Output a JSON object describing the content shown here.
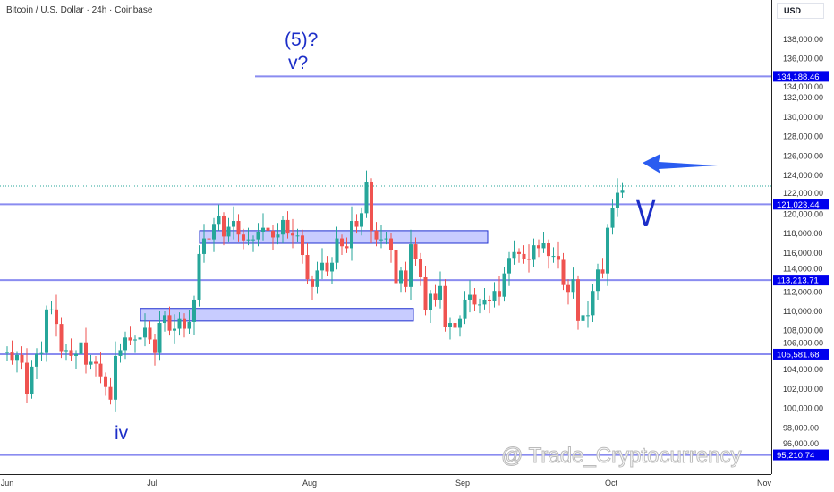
{
  "title": "Bitcoin / U.S. Dollar · 24h · Coinbase",
  "currency": "USD",
  "watermark": "@ Trade_Cryptocurrency",
  "annotations": {
    "wave5": "(5)?",
    "wave_v_small": "v?",
    "wave_iv": "iv",
    "wave_v": "V"
  },
  "colors": {
    "up": "#26a69a",
    "down": "#ef5350",
    "level": "#8a8cf0",
    "label": "#0000ee",
    "box": "#c8ccff"
  },
  "chart_data": {
    "type": "candlestick",
    "title": "Bitcoin / U.S. Dollar · 24h · Coinbase",
    "x_labels": [
      "Jun",
      "Jul",
      "Aug",
      "Sep",
      "Oct",
      "Nov"
    ],
    "y_ticks": [
      96000,
      98000,
      100000,
      102000,
      104000,
      106000,
      108000,
      110000,
      112000,
      114000,
      116000,
      118000,
      120000,
      122000,
      124000,
      126000,
      128000,
      130000,
      132000,
      134000,
      136000,
      138000
    ],
    "ylim": [
      94000,
      140000
    ],
    "levels": [
      134188.46,
      121023.44,
      113213.71,
      105581.68,
      95210.74
    ],
    "level_labels": [
      "134,188.46",
      "121,023.44",
      "113,213.71",
      "105,581.68",
      "95,210.74"
    ],
    "zones": [
      [
        117000,
        118300
      ],
      [
        109000,
        110300
      ]
    ],
    "last_price": 122900,
    "closes_k": [
      105.8,
      105.0,
      105.5,
      104.7,
      101.5,
      104.3,
      105.6,
      105.7,
      110.2,
      110.2,
      108.7,
      105.9,
      106.0,
      105.4,
      105.6,
      106.8,
      104.5,
      104.8,
      104.6,
      103.3,
      102.2,
      100.9,
      105.4,
      106.0,
      107.3,
      107.0,
      107.1,
      107.3,
      108.3,
      107.1,
      105.7,
      108.8,
      109.6,
      108.0,
      108.2,
      109.2,
      108.2,
      108.9,
      111.2,
      115.9,
      117.5,
      117.4,
      119.0,
      119.8,
      117.7,
      118.7,
      119.3,
      117.9,
      117.3,
      117.4,
      117.4,
      118.2,
      118.6,
      118.3,
      117.6,
      117.9,
      119.4,
      118.0,
      117.8,
      117.8,
      115.8,
      113.3,
      112.5,
      114.2,
      115.0,
      114.1,
      115.0,
      117.5,
      116.7,
      116.5,
      119.3,
      118.7,
      120.1,
      123.3,
      118.3,
      117.4,
      117.4,
      117.5,
      116.3,
      112.9,
      114.2,
      112.5,
      116.9,
      115.4,
      113.5,
      110.1,
      111.8,
      111.2,
      112.6,
      108.4,
      108.8,
      108.3,
      109.2,
      111.2,
      111.7,
      110.7,
      110.7,
      111.2,
      111.1,
      112.1,
      111.5,
      113.9,
      115.5,
      116.1,
      115.9,
      115.4,
      115.3,
      116.8,
      116.5,
      117.0,
      115.7,
      115.7,
      115.3,
      112.7,
      112.0,
      113.3,
      109.0,
      109.6,
      109.6,
      112.1,
      114.3,
      113.9,
      118.6,
      120.6,
      122.2,
      122.5
    ]
  }
}
